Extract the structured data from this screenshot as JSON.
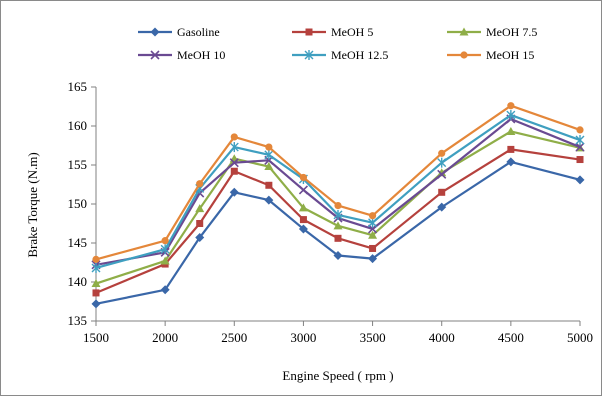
{
  "chart_data": {
    "type": "line",
    "xlabel": "Engine Speed ( rpm )",
    "ylabel": "Brake Torque (N.m)",
    "x": [
      1500,
      2000,
      2250,
      2500,
      2750,
      3000,
      3250,
      3500,
      4000,
      4500,
      5000
    ],
    "x_ticks": [
      1500,
      2000,
      2500,
      3000,
      3500,
      4000,
      4500,
      5000
    ],
    "y_ticks": [
      135,
      140,
      145,
      150,
      155,
      160,
      165
    ],
    "xlim": [
      1500,
      5000
    ],
    "ylim": [
      135,
      165
    ],
    "grid": false,
    "legend_position": "top",
    "series": [
      {
        "name": "Gasoline",
        "color": "#3a67a8",
        "marker": "diamond",
        "values": [
          137.2,
          139.0,
          145.7,
          151.5,
          150.5,
          146.8,
          143.4,
          143.0,
          149.6,
          155.4,
          153.1
        ]
      },
      {
        "name": "MeOH 5",
        "color": "#b5413d",
        "marker": "square",
        "values": [
          138.6,
          142.3,
          147.5,
          154.2,
          152.4,
          148.0,
          145.6,
          144.3,
          151.5,
          157.0,
          155.7
        ]
      },
      {
        "name": "MeOH 7.5",
        "color": "#8fae48",
        "marker": "triangle",
        "values": [
          139.8,
          142.7,
          149.4,
          155.8,
          154.8,
          149.5,
          147.2,
          146.0,
          154.0,
          159.3,
          157.2
        ]
      },
      {
        "name": "MeOH 10",
        "color": "#6a4a92",
        "marker": "x",
        "values": [
          142.2,
          143.8,
          151.4,
          155.3,
          155.6,
          151.8,
          148.2,
          146.8,
          153.8,
          160.9,
          157.3
        ]
      },
      {
        "name": "MeOH 12.5",
        "color": "#3f9fc0",
        "marker": "star",
        "values": [
          141.8,
          144.2,
          152.0,
          157.3,
          156.3,
          153.2,
          148.6,
          147.6,
          155.3,
          161.4,
          158.2
        ]
      },
      {
        "name": "MeOH 15",
        "color": "#e4873a",
        "marker": "circle",
        "values": [
          142.9,
          145.3,
          152.6,
          158.6,
          157.3,
          153.4,
          149.8,
          148.5,
          156.5,
          162.6,
          159.5
        ]
      }
    ]
  }
}
